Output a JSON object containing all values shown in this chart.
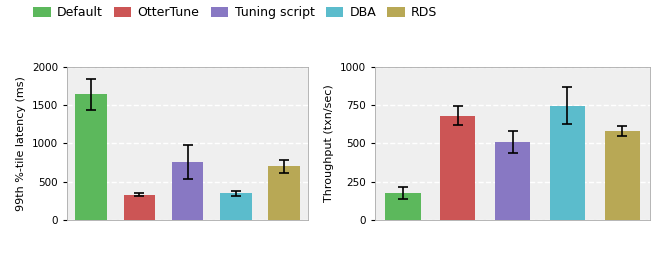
{
  "legend_labels": [
    "Default",
    "OtterTune",
    "Tuning script",
    "DBA",
    "RDS"
  ],
  "colors": [
    "#5cb85c",
    "#cc5555",
    "#8878c3",
    "#5bbccc",
    "#b8a855"
  ],
  "latency_values": [
    1640,
    330,
    760,
    350,
    700
  ],
  "latency_errors": [
    200,
    20,
    220,
    30,
    80
  ],
  "throughput_values": [
    175,
    680,
    510,
    745,
    580
  ],
  "throughput_errors": [
    40,
    60,
    70,
    120,
    35
  ],
  "latency_ylabel": "99th %-tile latency (ms)",
  "throughput_ylabel": "Throughput (txn/sec)",
  "latency_ylim": [
    0,
    2000
  ],
  "throughput_ylim": [
    0,
    1000
  ],
  "latency_yticks": [
    0,
    500,
    1000,
    1500,
    2000
  ],
  "throughput_yticks": [
    0,
    250,
    500,
    750,
    1000
  ],
  "plot_bg": "#efefef",
  "figure_bg": "#ffffff",
  "grid_color": "#ffffff",
  "legend_fontsize": 9,
  "axis_fontsize": 8,
  "tick_fontsize": 7.5
}
